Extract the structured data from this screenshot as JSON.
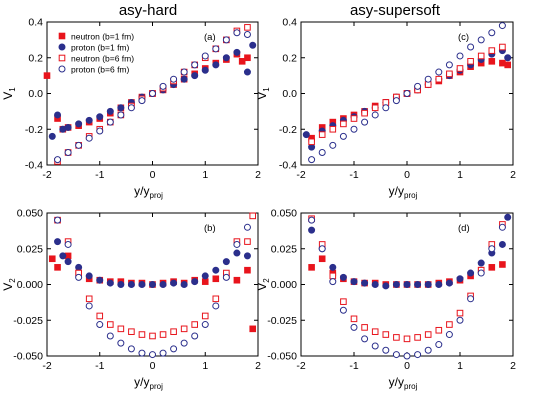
{
  "panel_titles": [
    "asy-hard",
    "asy-supersoft"
  ],
  "legend": {
    "entries": [
      {
        "label": "neutron (b=1 fm)",
        "series": "neutron_b1"
      },
      {
        "label": "proton  (b=1 fm)",
        "series": "proton_b1"
      },
      {
        "label": "neutron (b=6 fm)",
        "series": "neutron_b6"
      },
      {
        "label": "proton  (b=6 fm)",
        "series": "proton_b6"
      }
    ]
  },
  "colors": {
    "neutron": "#e8141c",
    "proton": "#2b2f8c",
    "axis": "#000000"
  },
  "chart_data": [
    {
      "type": "scatter",
      "panel_label": "(a)",
      "title": "asy-hard",
      "xlabel": "y/y",
      "xlabel_sub": "proj",
      "ylabel": "V",
      "ylabel_sub": "1",
      "xlim": [
        -2,
        2
      ],
      "ylim": [
        -0.4,
        0.4
      ],
      "xticks": [
        "-2",
        "-1",
        "0",
        "1",
        "2"
      ],
      "yticks": [
        "-0.4",
        "-0.2",
        "0.0",
        "0.2",
        "0.4"
      ],
      "legend": "top-left",
      "series": [
        {
          "name": "neutron (b=1 fm)",
          "marker": "square-filled",
          "color": "#e8141c",
          "x": [
            -2.0,
            -1.8,
            -1.7,
            -1.6,
            -1.4,
            -1.2,
            -1.0,
            -0.8,
            -0.6,
            -0.4,
            -0.2,
            0.0,
            0.2,
            0.4,
            0.6,
            0.8,
            1.0,
            1.2,
            1.4,
            1.6,
            1.7,
            1.8
          ],
          "y": [
            0.1,
            -0.14,
            -0.2,
            -0.19,
            -0.18,
            -0.16,
            -0.14,
            -0.11,
            -0.08,
            -0.05,
            -0.02,
            0.0,
            0.02,
            0.05,
            0.08,
            0.11,
            0.14,
            0.17,
            0.19,
            0.22,
            0.18,
            0.2
          ]
        },
        {
          "name": "proton  (b=1 fm)",
          "marker": "circle-filled",
          "color": "#2b2f8c",
          "x": [
            -1.9,
            -1.8,
            -1.7,
            -1.6,
            -1.4,
            -1.2,
            -1.0,
            -0.8,
            -0.6,
            -0.4,
            -0.2,
            0.0,
            0.2,
            0.4,
            0.6,
            0.8,
            1.0,
            1.2,
            1.4,
            1.6,
            1.8,
            1.9
          ],
          "y": [
            -0.24,
            -0.12,
            -0.2,
            -0.19,
            -0.17,
            -0.15,
            -0.13,
            -0.1,
            -0.08,
            -0.05,
            -0.02,
            0.0,
            0.02,
            0.05,
            0.08,
            0.1,
            0.13,
            0.16,
            0.2,
            0.23,
            0.12,
            0.27
          ]
        },
        {
          "name": "neutron (b=6 fm)",
          "marker": "square-open",
          "color": "#e8141c",
          "x": [
            -1.8,
            -1.6,
            -1.4,
            -1.2,
            -1.0,
            -0.8,
            -0.6,
            -0.4,
            -0.2,
            0.0,
            0.2,
            0.4,
            0.6,
            0.8,
            1.0,
            1.2,
            1.4,
            1.6,
            1.8
          ],
          "y": [
            -0.38,
            -0.33,
            -0.29,
            -0.24,
            -0.2,
            -0.16,
            -0.12,
            -0.07,
            -0.03,
            0.0,
            0.03,
            0.07,
            0.12,
            0.16,
            0.2,
            0.25,
            0.3,
            0.35,
            0.37
          ]
        },
        {
          "name": "proton  (b=6 fm)",
          "marker": "circle-open",
          "color": "#2b2f8c",
          "x": [
            -1.8,
            -1.6,
            -1.4,
            -1.2,
            -1.0,
            -0.8,
            -0.6,
            -0.4,
            -0.2,
            0.0,
            0.2,
            0.4,
            0.6,
            0.8,
            1.0,
            1.2,
            1.4,
            1.6,
            1.8
          ],
          "y": [
            -0.37,
            -0.33,
            -0.29,
            -0.25,
            -0.21,
            -0.16,
            -0.12,
            -0.08,
            -0.04,
            0.0,
            0.04,
            0.08,
            0.12,
            0.16,
            0.21,
            0.25,
            0.3,
            0.34,
            0.33
          ]
        }
      ]
    },
    {
      "type": "scatter",
      "panel_label": "(c)",
      "title": "asy-supersoft",
      "xlabel": "y/y",
      "xlabel_sub": "proj",
      "ylabel": "V",
      "ylabel_sub": "1",
      "xlim": [
        -2,
        2
      ],
      "ylim": [
        -0.4,
        0.4
      ],
      "xticks": [
        "-2",
        "-1",
        "0",
        "1",
        "2"
      ],
      "yticks": [
        "-0.4",
        "-0.2",
        "0.0",
        "0.2",
        "0.4"
      ],
      "series": [
        {
          "name": "neutron (b=1 fm)",
          "marker": "square-filled",
          "color": "#e8141c",
          "x": [
            -1.8,
            -1.6,
            -1.4,
            -1.2,
            -1.0,
            -0.8,
            -0.6,
            -0.4,
            -0.2,
            0.0,
            0.2,
            0.4,
            0.6,
            0.8,
            1.0,
            1.2,
            1.4,
            1.6,
            1.8,
            1.9
          ],
          "y": [
            -0.25,
            -0.19,
            -0.16,
            -0.14,
            -0.12,
            -0.1,
            -0.07,
            -0.05,
            -0.02,
            0.0,
            0.02,
            0.05,
            0.07,
            0.1,
            0.12,
            0.15,
            0.17,
            0.18,
            0.17,
            0.16
          ]
        },
        {
          "name": "proton  (b=1 fm)",
          "marker": "circle-filled",
          "color": "#2b2f8c",
          "x": [
            -1.9,
            -1.8,
            -1.6,
            -1.4,
            -1.2,
            -1.0,
            -0.8,
            -0.6,
            -0.4,
            -0.2,
            0.0,
            0.2,
            0.4,
            0.6,
            0.8,
            1.0,
            1.2,
            1.4,
            1.6,
            1.8,
            1.9
          ],
          "y": [
            -0.23,
            -0.3,
            -0.21,
            -0.18,
            -0.15,
            -0.13,
            -0.1,
            -0.08,
            -0.05,
            -0.02,
            0.0,
            0.02,
            0.05,
            0.08,
            0.1,
            0.13,
            0.16,
            0.19,
            0.22,
            0.24,
            0.2
          ]
        },
        {
          "name": "neutron (b=6 fm)",
          "marker": "square-open",
          "color": "#e8141c",
          "x": [
            -1.8,
            -1.6,
            -1.4,
            -1.2,
            -1.0,
            -0.8,
            -0.6,
            -0.4,
            -0.2,
            0.0,
            0.2,
            0.4,
            0.6,
            0.8,
            1.0,
            1.2,
            1.4,
            1.6,
            1.8
          ],
          "y": [
            -0.27,
            -0.23,
            -0.2,
            -0.17,
            -0.14,
            -0.11,
            -0.08,
            -0.05,
            -0.02,
            0.0,
            0.02,
            0.05,
            0.08,
            0.11,
            0.14,
            0.18,
            0.21,
            0.24,
            0.26
          ]
        },
        {
          "name": "proton  (b=6 fm)",
          "marker": "circle-open",
          "color": "#2b2f8c",
          "x": [
            -1.8,
            -1.6,
            -1.4,
            -1.2,
            -1.0,
            -0.8,
            -0.6,
            -0.4,
            -0.2,
            0.0,
            0.2,
            0.4,
            0.6,
            0.8,
            1.0,
            1.2,
            1.4,
            1.6,
            1.8
          ],
          "y": [
            -0.37,
            -0.33,
            -0.29,
            -0.24,
            -0.2,
            -0.16,
            -0.12,
            -0.08,
            -0.04,
            0.0,
            0.04,
            0.08,
            0.12,
            0.16,
            0.21,
            0.26,
            0.3,
            0.34,
            0.38
          ]
        }
      ]
    },
    {
      "type": "scatter",
      "panel_label": "(b)",
      "xlabel": "y/y",
      "xlabel_sub": "proj",
      "ylabel": "V",
      "ylabel_sub": "2",
      "xlim": [
        -2,
        2
      ],
      "ylim": [
        -0.05,
        0.05
      ],
      "xticks": [
        "-2",
        "-1",
        "0",
        "1",
        "2"
      ],
      "yticks": [
        "-0.050",
        "-0.025",
        "0.000",
        "0.025",
        "0.050"
      ],
      "series": [
        {
          "name": "neutron (b=1 fm)",
          "marker": "square-filled",
          "color": "#e8141c",
          "x": [
            -1.9,
            -1.8,
            -1.6,
            -1.4,
            -1.2,
            -1.0,
            -0.8,
            -0.6,
            -0.4,
            -0.2,
            0.0,
            0.2,
            0.4,
            0.6,
            0.8,
            1.0,
            1.2,
            1.4,
            1.6,
            1.8,
            1.9
          ],
          "y": [
            0.018,
            0.012,
            0.02,
            0.008,
            0.004,
            0.003,
            0.002,
            0.002,
            0.001,
            0.001,
            0.0,
            0.001,
            0.002,
            0.001,
            0.003,
            0.002,
            0.004,
            0.006,
            0.003,
            0.01,
            -0.031
          ]
        },
        {
          "name": "proton  (b=1 fm)",
          "marker": "circle-filled",
          "color": "#2b2f8c",
          "x": [
            -1.8,
            -1.7,
            -1.6,
            -1.4,
            -1.2,
            -1.0,
            -0.8,
            -0.6,
            -0.4,
            -0.2,
            0.0,
            0.2,
            0.4,
            0.6,
            0.8,
            1.0,
            1.2,
            1.4,
            1.6,
            1.8
          ],
          "y": [
            0.03,
            0.02,
            0.016,
            0.012,
            0.006,
            0.003,
            0.001,
            0.0,
            0.0,
            0.0,
            0.0,
            0.0,
            0.001,
            0.0,
            0.002,
            0.006,
            0.01,
            0.016,
            0.022,
            0.02
          ]
        },
        {
          "name": "neutron (b=6 fm)",
          "marker": "square-open",
          "color": "#e8141c",
          "x": [
            -1.8,
            -1.6,
            -1.4,
            -1.2,
            -1.0,
            -0.8,
            -0.6,
            -0.4,
            -0.2,
            0.0,
            0.2,
            0.4,
            0.6,
            0.8,
            1.0,
            1.2,
            1.4,
            1.6,
            1.8,
            1.9
          ],
          "y": [
            0.045,
            0.03,
            0.008,
            -0.01,
            -0.022,
            -0.028,
            -0.031,
            -0.033,
            -0.035,
            -0.036,
            -0.035,
            -0.033,
            -0.031,
            -0.028,
            -0.022,
            -0.01,
            0.008,
            0.03,
            0.03,
            0.048
          ]
        },
        {
          "name": "proton  (b=6 fm)",
          "marker": "circle-open",
          "color": "#2b2f8c",
          "x": [
            -1.8,
            -1.6,
            -1.4,
            -1.2,
            -1.0,
            -0.8,
            -0.6,
            -0.4,
            -0.2,
            0.0,
            0.2,
            0.4,
            0.6,
            0.8,
            1.0,
            1.2,
            1.4,
            1.6,
            1.8
          ],
          "y": [
            0.045,
            0.028,
            0.005,
            -0.015,
            -0.028,
            -0.036,
            -0.041,
            -0.045,
            -0.048,
            -0.049,
            -0.048,
            -0.045,
            -0.041,
            -0.036,
            -0.028,
            -0.015,
            0.005,
            0.028,
            0.04
          ]
        }
      ]
    },
    {
      "type": "scatter",
      "panel_label": "(d)",
      "xlabel": "y/y",
      "xlabel_sub": "proj",
      "ylabel": "V",
      "ylabel_sub": "2",
      "xlim": [
        -2,
        2
      ],
      "ylim": [
        -0.05,
        0.05
      ],
      "xticks": [
        "-2",
        "-1",
        "0",
        "1",
        "2"
      ],
      "yticks": [
        "-0.050",
        "-0.025",
        "0.000",
        "0.025",
        "0.050"
      ],
      "series": [
        {
          "name": "neutron (b=1 fm)",
          "marker": "square-filled",
          "color": "#e8141c",
          "x": [
            -1.8,
            -1.6,
            -1.4,
            -1.2,
            -1.0,
            -0.8,
            -0.6,
            -0.4,
            -0.2,
            0.0,
            0.2,
            0.4,
            0.6,
            0.8,
            1.0,
            1.2,
            1.4,
            1.6,
            1.8
          ],
          "y": [
            0.012,
            0.018,
            0.008,
            0.004,
            0.002,
            0.001,
            0.001,
            0.0,
            0.0,
            0.0,
            0.0,
            0.0,
            0.001,
            0.002,
            0.003,
            0.006,
            0.01,
            0.012,
            0.014
          ]
        },
        {
          "name": "proton  (b=1 fm)",
          "marker": "circle-filled",
          "color": "#2b2f8c",
          "x": [
            -1.8,
            -1.6,
            -1.4,
            -1.2,
            -1.0,
            -0.8,
            -0.6,
            -0.4,
            -0.2,
            0.0,
            0.2,
            0.4,
            0.6,
            0.8,
            1.0,
            1.2,
            1.4,
            1.6,
            1.8,
            1.9
          ],
          "y": [
            0.038,
            0.025,
            0.012,
            0.005,
            0.002,
            0.001,
            0.0,
            -0.001,
            0.0,
            0.0,
            0.0,
            0.0,
            0.0,
            0.001,
            0.004,
            0.008,
            0.015,
            0.022,
            0.028,
            0.047
          ]
        },
        {
          "name": "neutron (b=6 fm)",
          "marker": "square-open",
          "color": "#e8141c",
          "x": [
            -1.8,
            -1.6,
            -1.4,
            -1.2,
            -1.0,
            -0.8,
            -0.6,
            -0.4,
            -0.2,
            0.0,
            0.2,
            0.4,
            0.6,
            0.8,
            1.0,
            1.2,
            1.4,
            1.6,
            1.8
          ],
          "y": [
            0.046,
            0.028,
            0.006,
            -0.012,
            -0.024,
            -0.03,
            -0.033,
            -0.035,
            -0.037,
            -0.038,
            -0.037,
            -0.035,
            -0.032,
            -0.028,
            -0.02,
            -0.008,
            0.01,
            0.028,
            0.042
          ]
        },
        {
          "name": "proton  (b=6 fm)",
          "marker": "circle-open",
          "color": "#2b2f8c",
          "x": [
            -1.8,
            -1.6,
            -1.4,
            -1.2,
            -1.0,
            -0.8,
            -0.6,
            -0.4,
            -0.2,
            0.0,
            0.2,
            0.4,
            0.6,
            0.8,
            1.0,
            1.2,
            1.4,
            1.6,
            1.8
          ],
          "y": [
            0.045,
            0.025,
            0.002,
            -0.018,
            -0.03,
            -0.038,
            -0.043,
            -0.046,
            -0.049,
            -0.05,
            -0.049,
            -0.046,
            -0.042,
            -0.035,
            -0.025,
            -0.01,
            0.008,
            0.025,
            0.04
          ]
        }
      ]
    }
  ]
}
